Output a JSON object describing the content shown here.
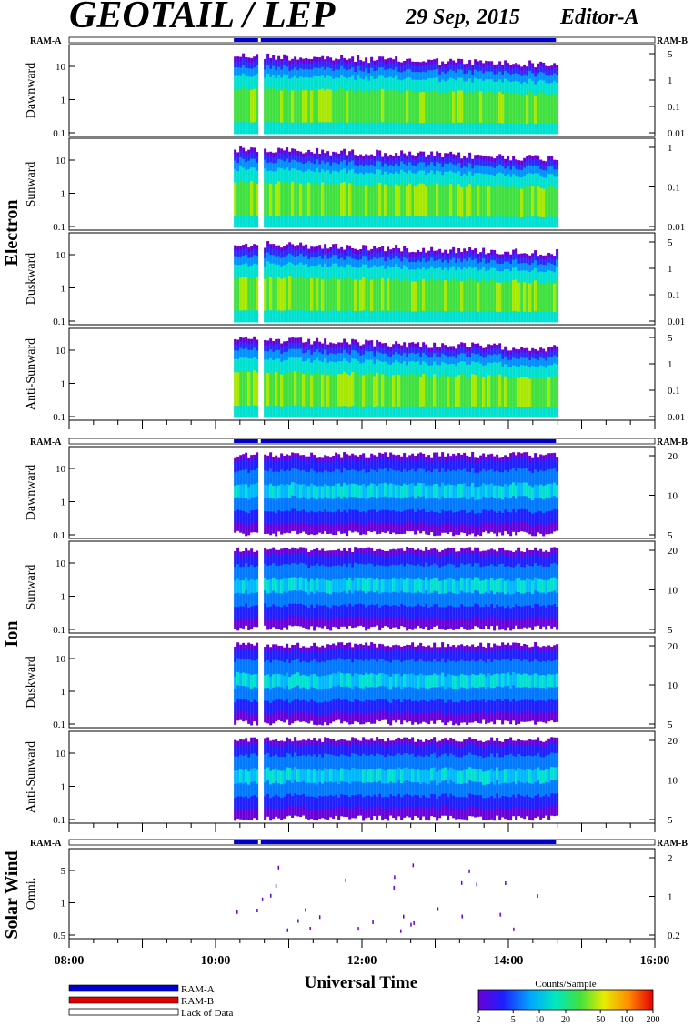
{
  "header": {
    "title": "GEOTAIL / LEP",
    "date": "29 Sep, 2015",
    "editor": "Editor-A"
  },
  "ram_labels": {
    "left": "RAM-A",
    "right": "RAM-B"
  },
  "group_labels": {
    "electron": "Electron",
    "ion": "Ion",
    "solar_wind": "Solar Wind"
  },
  "axis": {
    "xlabel": "Universal Time",
    "x_ticks": [
      "08:00",
      "10:00",
      "12:00",
      "14:00",
      "16:00"
    ],
    "x_range_hours": [
      8,
      16
    ]
  },
  "legend": {
    "ram_a": "RAM-A",
    "ram_b": "RAM-B",
    "lack": "Lack of Data",
    "colorbar_title": "Counts/Sample",
    "colorbar_ticks": [
      "2",
      "5",
      "10",
      "20",
      "50",
      "100",
      "200"
    ],
    "colors": {
      "ram_a": "#0000cc",
      "ram_b": "#e00000"
    }
  },
  "chart_data": {
    "type": "heatmap",
    "data_span_hours": [
      10.25,
      14.65
    ],
    "gaps_hours": [
      10.6
    ],
    "panels": [
      {
        "group": "electron",
        "label": "Dawnward",
        "left_ticks": [
          "10",
          "1",
          "0.1"
        ],
        "right_ticks": [
          "5",
          "1",
          "0.1",
          "0.01"
        ]
      },
      {
        "group": "electron",
        "label": "Sunward",
        "left_ticks": [
          "10",
          "1",
          "0.1"
        ],
        "right_ticks": [
          "1",
          "0.1",
          "0.01"
        ]
      },
      {
        "group": "electron",
        "label": "Duskward",
        "left_ticks": [
          "10",
          "1",
          "0.1"
        ],
        "right_ticks": [
          "5",
          "1",
          "0.1",
          "0.01"
        ]
      },
      {
        "group": "electron",
        "label": "Anti-Sunward",
        "left_ticks": [
          "10",
          "1",
          "0.1"
        ],
        "right_ticks": [
          "5",
          "1",
          "0.1",
          "0.01"
        ]
      },
      {
        "group": "ion",
        "label": "Dawnward",
        "left_ticks": [
          "10",
          "1",
          "0.1"
        ],
        "right_ticks": [
          "20",
          "10",
          "5"
        ]
      },
      {
        "group": "ion",
        "label": "Sunward",
        "left_ticks": [
          "10",
          "1",
          "0.1"
        ],
        "right_ticks": [
          "20",
          "10",
          "5"
        ]
      },
      {
        "group": "ion",
        "label": "Duskward",
        "left_ticks": [
          "10",
          "1",
          "0.1"
        ],
        "right_ticks": [
          "20",
          "10",
          "5"
        ]
      },
      {
        "group": "ion",
        "label": "Anti-Sunward",
        "left_ticks": [
          "10",
          "1",
          "0.1"
        ],
        "right_ticks": [
          "20",
          "10",
          "5"
        ]
      },
      {
        "group": "solar_wind",
        "label": "Omni.",
        "left_ticks": [
          "5",
          "1",
          "0.5"
        ],
        "right_ticks": [
          "2",
          "1",
          "0.2"
        ]
      }
    ]
  }
}
